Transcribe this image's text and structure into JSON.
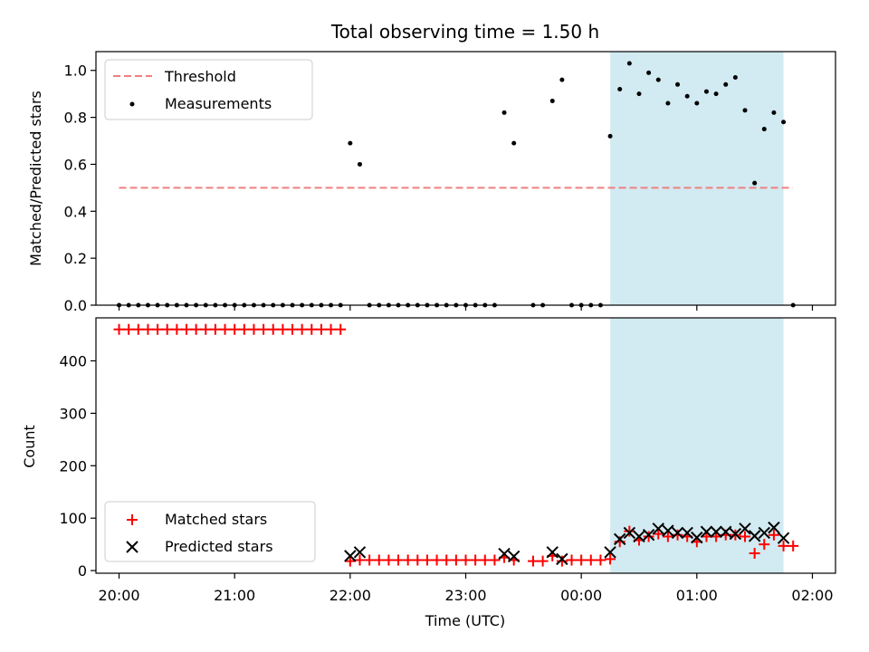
{
  "chart_data": [
    {
      "type": "scatter",
      "title": "Total observing time = 1.50 h",
      "ylabel": "Matched/Predicted stars",
      "ylim": [
        0,
        1.08
      ],
      "yticks": [
        "0.0",
        "0.2",
        "0.4",
        "0.6",
        "0.8",
        "1.0"
      ],
      "ytick_values": [
        0,
        0.2,
        0.4,
        0.6,
        0.8,
        1.0
      ],
      "xlim_hours": [
        19.8,
        26.2
      ],
      "shaded_span_hours": [
        24.25,
        25.75
      ],
      "shade_color": "#add8e6",
      "legend": {
        "placement": "upper left",
        "threshold_label": "Threshold",
        "measurements_label": "Measurements"
      },
      "threshold": {
        "value": 0.5,
        "x_range_hours": [
          20.0,
          25.83
        ],
        "color": "#f08080"
      },
      "measurements": {
        "color": "#000000",
        "x_hours": [
          20.0,
          20.0833,
          20.1667,
          20.25,
          20.3333,
          20.4167,
          20.5,
          20.5833,
          20.6667,
          20.75,
          20.8333,
          20.9167,
          21.0,
          21.0833,
          21.1667,
          21.25,
          21.3333,
          21.4167,
          21.5,
          21.5833,
          21.6667,
          21.75,
          21.8333,
          21.9167,
          22.0,
          22.0833,
          22.1667,
          22.25,
          22.3333,
          22.4167,
          22.5,
          22.5833,
          22.6667,
          22.75,
          22.8333,
          22.9167,
          23.0,
          23.0833,
          23.1667,
          23.25,
          23.3333,
          23.4167,
          23.5833,
          23.6667,
          23.75,
          23.8333,
          23.9167,
          24.0,
          24.0833,
          24.1667,
          24.25,
          24.3333,
          24.4167,
          24.5,
          24.5833,
          24.6667,
          24.75,
          24.8333,
          24.9167,
          25.0,
          25.0833,
          25.1667,
          25.25,
          25.3333,
          25.4167,
          25.5,
          25.5833,
          25.6667,
          25.75,
          25.8333
        ],
        "y": [
          0,
          0,
          0,
          0,
          0,
          0,
          0,
          0,
          0,
          0,
          0,
          0,
          0,
          0,
          0,
          0,
          0,
          0,
          0,
          0,
          0,
          0,
          0,
          0,
          0.69,
          0.6,
          0,
          0,
          0,
          0,
          0,
          0,
          0,
          0,
          0,
          0,
          0,
          0,
          0,
          0,
          0.82,
          0.69,
          0,
          0,
          0.87,
          0.96,
          0,
          0,
          0,
          0,
          0.72,
          0.92,
          1.03,
          0.9,
          0.99,
          0.96,
          0.86,
          0.94,
          0.89,
          0.86,
          0.91,
          0.9,
          0.94,
          0.97,
          0.83,
          0.52,
          0.75,
          0.82,
          0.78,
          0
        ]
      }
    },
    {
      "type": "scatter",
      "ylabel": "Count",
      "xlabel": "Time (UTC)",
      "ylim": [
        -5,
        482
      ],
      "yticks": [
        "0",
        "100",
        "200",
        "300",
        "400"
      ],
      "ytick_values": [
        0,
        100,
        200,
        300,
        400
      ],
      "xlim_hours": [
        19.8,
        26.2
      ],
      "xticks": [
        "20:00",
        "21:00",
        "22:00",
        "23:00",
        "00:00",
        "01:00",
        "02:00"
      ],
      "xtick_hours": [
        20,
        21,
        22,
        23,
        24,
        25,
        26
      ],
      "shaded_span_hours": [
        24.25,
        25.75
      ],
      "shade_color": "#add8e6",
      "legend": {
        "placement": "lower left",
        "matched_label": "Matched stars",
        "predicted_label": "Predicted stars"
      },
      "matched": {
        "color": "#ff0000",
        "x_hours": [
          20.0,
          20.0833,
          20.1667,
          20.25,
          20.3333,
          20.4167,
          20.5,
          20.5833,
          20.6667,
          20.75,
          20.8333,
          20.9167,
          21.0,
          21.0833,
          21.1667,
          21.25,
          21.3333,
          21.4167,
          21.5,
          21.5833,
          21.6667,
          21.75,
          21.8333,
          21.9167,
          22.0,
          22.0833,
          22.1667,
          22.25,
          22.3333,
          22.4167,
          22.5,
          22.5833,
          22.6667,
          22.75,
          22.8333,
          22.9167,
          23.0,
          23.0833,
          23.1667,
          23.25,
          23.3333,
          23.4167,
          23.5833,
          23.6667,
          23.75,
          23.8333,
          23.9167,
          24.0,
          24.0833,
          24.1667,
          24.25,
          24.3333,
          24.4167,
          24.5,
          24.5833,
          24.6667,
          24.75,
          24.8333,
          24.9167,
          25.0,
          25.0833,
          25.1667,
          25.25,
          25.3333,
          25.4167,
          25.5,
          25.5833,
          25.6667,
          25.75,
          25.8333
        ],
        "y": [
          460,
          460,
          460,
          460,
          460,
          460,
          460,
          460,
          460,
          460,
          460,
          460,
          460,
          460,
          460,
          460,
          460,
          460,
          460,
          460,
          460,
          460,
          460,
          460,
          18,
          20,
          20,
          20,
          20,
          20,
          20,
          20,
          20,
          20,
          20,
          20,
          20,
          20,
          20,
          20,
          25,
          20,
          18,
          18,
          28,
          18,
          20,
          20,
          20,
          20,
          22,
          55,
          75,
          58,
          65,
          70,
          65,
          68,
          65,
          55,
          65,
          65,
          68,
          68,
          65,
          33,
          50,
          68,
          47,
          47
        ]
      },
      "predicted": {
        "color": "#000000",
        "x_hours": [
          22.0,
          22.0833,
          23.3333,
          23.4167,
          23.75,
          23.8333,
          24.25,
          24.3333,
          24.4167,
          24.5,
          24.5833,
          24.6667,
          24.75,
          24.8333,
          24.9167,
          25.0,
          25.0833,
          25.1667,
          25.25,
          25.3333,
          25.4167,
          25.5,
          25.5833,
          25.6667,
          25.75
        ],
        "y": [
          28,
          35,
          32,
          27,
          35,
          22,
          35,
          60,
          72,
          65,
          68,
          80,
          76,
          72,
          72,
          63,
          74,
          74,
          74,
          70,
          80,
          66,
          72,
          82,
          62
        ]
      }
    }
  ]
}
